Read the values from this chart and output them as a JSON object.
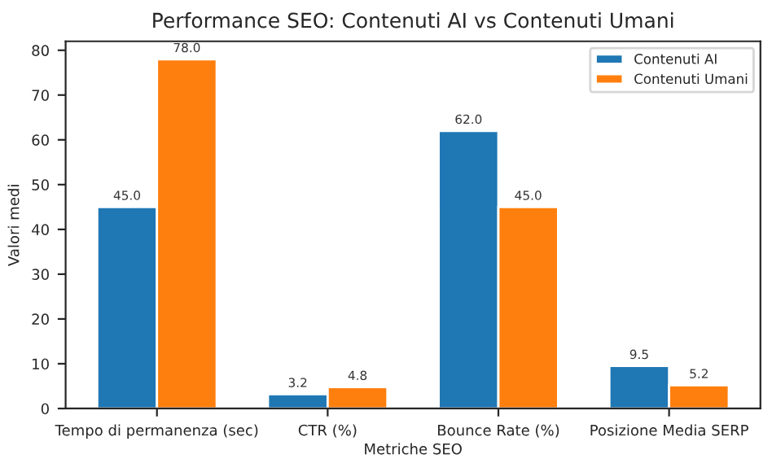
{
  "chart_data": {
    "type": "bar",
    "title": "Performance SEO: Contenuti AI vs Contenuti Umani",
    "xlabel": "Metriche SEO",
    "ylabel": "Valori medi",
    "categories": [
      "Tempo di permanenza (sec)",
      "CTR (%)",
      "Bounce Rate (%)",
      "Posizione Media SERP"
    ],
    "series": [
      {
        "name": "Contenuti AI",
        "color": "#1f77b4",
        "values": [
          45.0,
          3.2,
          62.0,
          9.5
        ],
        "value_labels": [
          "45.0",
          "3.2",
          "62.0",
          "9.5"
        ]
      },
      {
        "name": "Contenuti Umani",
        "color": "#ff7f0e",
        "values": [
          78.0,
          4.8,
          45.0,
          5.2
        ],
        "value_labels": [
          "78.0",
          "4.8",
          "45.0",
          "5.2"
        ]
      }
    ],
    "ylim": [
      0,
      82
    ],
    "yticks": [
      0,
      10,
      20,
      30,
      40,
      50,
      60,
      70,
      80
    ],
    "legend": "top right",
    "grid": false
  }
}
